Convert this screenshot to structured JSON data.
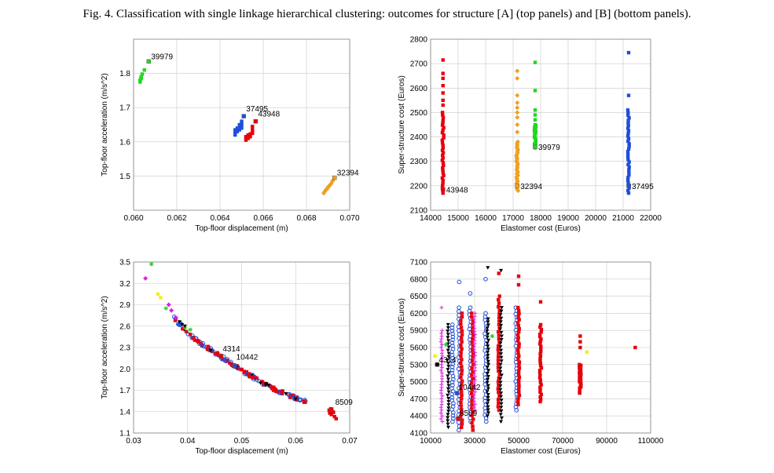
{
  "caption": "Fig. 4. Classification with single linkage hierarchical clustering: outcomes for structure [A] (top panels) and [B] (bottom panels).",
  "colors": {
    "red": "#e8000b",
    "blue": "#1f4fd8",
    "green": "#1ed81e",
    "orange": "#f0a020",
    "black": "#000000",
    "magenta": "#e020e0",
    "yellow": "#f0f020",
    "grid": "#c8c8c8"
  },
  "chart_data": [
    {
      "type": "scatter",
      "xlabel": "Top-floor displacement (m)",
      "ylabel": "Top-floor acceleration (m/s^2)",
      "xlim": [
        0.06,
        0.07
      ],
      "ylim": [
        1.4,
        1.9
      ],
      "xticks": [
        0.06,
        0.062,
        0.064,
        0.066,
        0.068,
        0.07
      ],
      "xtick_labels": [
        "0.060",
        "0.062",
        "0.064",
        "0.066",
        "0.068",
        "0.070"
      ],
      "yticks": [
        1.5,
        1.6,
        1.7,
        1.8
      ],
      "ytick_labels": [
        "1.5",
        "1.6",
        "1.7",
        "1.8"
      ],
      "grid": true,
      "series": [
        {
          "color": "#1ed81e",
          "marker": "square",
          "points": [
            [
              0.0603,
              1.775
            ],
            [
              0.0603,
              1.78
            ],
            [
              0.06035,
              1.785
            ],
            [
              0.06035,
              1.79
            ],
            [
              0.0604,
              1.798
            ],
            [
              0.0605,
              1.81
            ]
          ]
        },
        {
          "color": "#1f4fd8",
          "marker": "square",
          "points": [
            [
              0.0647,
              1.62
            ],
            [
              0.0647,
              1.625
            ],
            [
              0.0647,
              1.63
            ],
            [
              0.0647,
              1.635
            ],
            [
              0.0648,
              1.63
            ],
            [
              0.0648,
              1.64
            ],
            [
              0.0649,
              1.635
            ],
            [
              0.0649,
              1.645
            ],
            [
              0.065,
              1.64
            ],
            [
              0.065,
              1.648
            ],
            [
              0.065,
              1.652
            ],
            [
              0.0649,
              1.65
            ],
            [
              0.065,
              1.66
            ]
          ]
        },
        {
          "color": "#e8000b",
          "marker": "square",
          "points": [
            [
              0.0652,
              1.605
            ],
            [
              0.0652,
              1.61
            ],
            [
              0.0652,
              1.615
            ],
            [
              0.0653,
              1.61
            ],
            [
              0.0653,
              1.62
            ],
            [
              0.0654,
              1.615
            ],
            [
              0.0654,
              1.623
            ],
            [
              0.0655,
              1.625
            ],
            [
              0.0655,
              1.63
            ],
            [
              0.0655,
              1.64
            ],
            [
              0.0655,
              1.645
            ]
          ]
        },
        {
          "color": "#f0a020",
          "marker": "diamond",
          "points": [
            [
              0.0688,
              1.45
            ],
            [
              0.06885,
              1.455
            ],
            [
              0.0689,
              1.46
            ],
            [
              0.06895,
              1.462
            ],
            [
              0.069,
              1.468
            ],
            [
              0.06905,
              1.47
            ],
            [
              0.0691,
              1.475
            ],
            [
              0.06915,
              1.478
            ],
            [
              0.0692,
              1.485
            ],
            [
              0.06925,
              1.49
            ]
          ]
        }
      ],
      "labeled": [
        {
          "label": "39979",
          "x": 0.0607,
          "y": 1.835,
          "color": "#1ed81e",
          "dx": 3,
          "dy": -3
        },
        {
          "label": "37495",
          "x": 0.0651,
          "y": 1.675,
          "color": "#1f4fd8",
          "dx": 3,
          "dy": -6
        },
        {
          "label": "43948",
          "x": 0.06565,
          "y": 1.66,
          "color": "#e8000b",
          "dx": 3,
          "dy": -6
        },
        {
          "label": "32394",
          "x": 0.0693,
          "y": 1.495,
          "color": "#f0a020",
          "dx": 3,
          "dy": -3
        }
      ]
    },
    {
      "type": "scatter",
      "xlabel": "Elastomer cost (Euros)",
      "ylabel": "Super-structure cost (Euros)",
      "xlim": [
        14000,
        22000
      ],
      "ylim": [
        2100,
        2800
      ],
      "xticks": [
        14000,
        15000,
        16000,
        17000,
        18000,
        19000,
        20000,
        21000,
        22000
      ],
      "xtick_labels": [
        "14000",
        "15000",
        "16000",
        "17000",
        "18000",
        "19000",
        "20000",
        "21000",
        "22000"
      ],
      "yticks": [
        2100,
        2200,
        2300,
        2400,
        2500,
        2600,
        2700,
        2800
      ],
      "ytick_labels": [
        "2100",
        "2200",
        "2300",
        "2400",
        "2500",
        "2600",
        "2700",
        "2800"
      ],
      "grid": true,
      "columns": [
        {
          "x": 14450,
          "ymin": 2170,
          "ymax": 2500,
          "extra": [
            2530,
            2550,
            2580,
            2610,
            2640,
            2660,
            2715
          ],
          "color": "#e8000b",
          "marker": "square"
        },
        {
          "x": 17150,
          "ymin": 2180,
          "ymax": 2380,
          "extra": [
            2420,
            2450,
            2480,
            2500,
            2520,
            2540,
            2570,
            2640,
            2670
          ],
          "color": "#f0a020",
          "marker": "diamond"
        },
        {
          "x": 17800,
          "ymin": 2355,
          "ymax": 2450,
          "extra": [
            2470,
            2490,
            2510,
            2590,
            2705
          ],
          "color": "#1ed81e",
          "marker": "square"
        },
        {
          "x": 21200,
          "ymin": 2170,
          "ymax": 2510,
          "extra": [
            2570,
            2745
          ],
          "color": "#1f4fd8",
          "marker": "square"
        }
      ],
      "labeled": [
        {
          "label": "43948",
          "x": 14450,
          "y": 2185,
          "color": "#e8000b",
          "dx": 4,
          "dy": 4
        },
        {
          "label": "32394",
          "x": 17150,
          "y": 2200,
          "color": "#f0a020",
          "dx": 4,
          "dy": 4
        },
        {
          "label": "39979",
          "x": 17800,
          "y": 2360,
          "color": "#1ed81e",
          "dx": 4,
          "dy": 4
        },
        {
          "label": "37495",
          "x": 21200,
          "y": 2200,
          "color": "#1f4fd8",
          "dx": 4,
          "dy": 4
        }
      ]
    },
    {
      "type": "scatter",
      "xlabel": "Top-floor displacement (m)",
      "ylabel": "Top-floor acceleration (m/s^2)",
      "xlim": [
        0.03,
        0.07
      ],
      "ylim": [
        1.1,
        3.5
      ],
      "xticks": [
        0.03,
        0.04,
        0.05,
        0.06,
        0.07
      ],
      "xtick_labels": [
        "0.03",
        "0.04",
        "0.05",
        "0.06",
        "0.07"
      ],
      "yticks": [
        1.1,
        1.4,
        1.7,
        2.0,
        2.3,
        2.6,
        2.9,
        3.2,
        3.5
      ],
      "ytick_labels": [
        "1.1",
        "1.4",
        "1.7",
        "2.0",
        "2.3",
        "2.6",
        "2.9",
        "3.2",
        "3.5"
      ],
      "grid": true,
      "trend": [
        [
          0.0375,
          2.72
        ],
        [
          0.04,
          2.5
        ],
        [
          0.042,
          2.38
        ],
        [
          0.044,
          2.28
        ],
        [
          0.046,
          2.18
        ],
        [
          0.048,
          2.08
        ],
        [
          0.05,
          1.98
        ],
        [
          0.052,
          1.89
        ],
        [
          0.054,
          1.8
        ],
        [
          0.056,
          1.72
        ],
        [
          0.058,
          1.65
        ],
        [
          0.06,
          1.59
        ],
        [
          0.062,
          1.54
        ]
      ],
      "series": [
        {
          "color": "#1ed81e",
          "marker": "star",
          "points": [
            [
              0.0333,
              3.47
            ],
            [
              0.0395,
              2.58
            ],
            [
              0.0405,
              2.55
            ],
            [
              0.036,
              2.85
            ]
          ]
        },
        {
          "color": "#e020e0",
          "marker": "diamond",
          "points": [
            [
              0.0322,
              3.27
            ],
            [
              0.0365,
              2.9
            ],
            [
              0.037,
              2.82
            ],
            [
              0.0378,
              2.72
            ]
          ]
        },
        {
          "color": "#f0f020",
          "marker": "square",
          "points": [
            [
              0.0345,
              3.05
            ],
            [
              0.035,
              3.0
            ]
          ]
        },
        {
          "color": "#000000",
          "marker": "tri",
          "points": [
            [
              0.0385,
              2.66
            ],
            [
              0.039,
              2.62
            ],
            [
              0.0395,
              2.6
            ],
            [
              0.049,
              2.02
            ],
            [
              0.0535,
              1.8
            ],
            [
              0.0545,
              1.78
            ],
            [
              0.055,
              1.77
            ]
          ]
        },
        {
          "color": "#e8000b",
          "marker": "square",
          "points": [
            [
              0.0665,
              1.44
            ],
            [
              0.0662,
              1.42
            ],
            [
              0.0668,
              1.4
            ],
            [
              0.067,
              1.39
            ],
            [
              0.0663,
              1.38
            ],
            [
              0.0666,
              1.36
            ],
            [
              0.0672,
              1.33
            ],
            [
              0.0675,
              1.3
            ]
          ]
        }
      ],
      "labeled": [
        {
          "label": "4314",
          "x": 0.0462,
          "y": 2.18,
          "color": "#e8000b",
          "dx": 2,
          "dy": -6
        },
        {
          "label": "10442",
          "x": 0.0487,
          "y": 2.04,
          "color": "#1f4fd8",
          "dx": 2,
          "dy": -8
        },
        {
          "label": "8509",
          "x": 0.0666,
          "y": 1.43,
          "color": "#e8000b",
          "dx": 5,
          "dy": -6
        }
      ]
    },
    {
      "type": "scatter",
      "xlabel": "Elastomer cost (Euros)",
      "ylabel": "Super-structure cost (Euros)",
      "xlim": [
        10000,
        110000
      ],
      "ylim": [
        4100,
        7100
      ],
      "xticks": [
        10000,
        30000,
        50000,
        70000,
        90000,
        110000
      ],
      "xtick_labels": [
        "10000",
        "30000",
        "50000",
        "70000",
        "90000",
        "110000"
      ],
      "yticks": [
        4100,
        4400,
        4700,
        5000,
        5300,
        5600,
        5900,
        6200,
        6500,
        6800,
        7100
      ],
      "ytick_labels": [
        "4100",
        "4400",
        "4700",
        "5000",
        "5300",
        "5600",
        "5900",
        "6200",
        "6500",
        "6800",
        "7100"
      ],
      "grid": true,
      "columns": [
        {
          "x": 15000,
          "ymin": 4300,
          "ymax": 5900,
          "extra": [
            6300
          ],
          "color": "#e020e0",
          "marker": "plus"
        },
        {
          "x": 18000,
          "ymin": 4200,
          "ymax": 6000,
          "extra": [],
          "color": "#000000",
          "marker": "tri"
        },
        {
          "x": 20000,
          "ymin": 4300,
          "ymax": 6000,
          "extra": [],
          "color": "#1f4fd8",
          "marker": "circle"
        },
        {
          "x": 23000,
          "ymin": 4150,
          "ymax": 6300,
          "extra": [
            6750
          ],
          "color": "#1f4fd8",
          "marker": "circle"
        },
        {
          "x": 24000,
          "ymin": 4200,
          "ymax": 6200,
          "extra": [],
          "color": "#e8000b",
          "marker": "square"
        },
        {
          "x": 28000,
          "ymin": 4300,
          "ymax": 6300,
          "extra": [
            6550
          ],
          "color": "#1f4fd8",
          "marker": "circle"
        },
        {
          "x": 29000,
          "ymin": 4150,
          "ymax": 6200,
          "extra": [],
          "color": "#e8000b",
          "marker": "square"
        },
        {
          "x": 30000,
          "ymin": 4500,
          "ymax": 6200,
          "extra": [],
          "color": "#e020e0",
          "marker": "plus"
        },
        {
          "x": 35000,
          "ymin": 4300,
          "ymax": 6200,
          "extra": [
            6800
          ],
          "color": "#1f4fd8",
          "marker": "circle"
        },
        {
          "x": 36000,
          "ymin": 4400,
          "ymax": 6100,
          "extra": [
            7000
          ],
          "color": "#000000",
          "marker": "tri"
        },
        {
          "x": 41000,
          "ymin": 4500,
          "ymax": 6500,
          "extra": [
            6900
          ],
          "color": "#e8000b",
          "marker": "square"
        },
        {
          "x": 42000,
          "ymin": 4300,
          "ymax": 6300,
          "extra": [
            6950
          ],
          "color": "#000000",
          "marker": "tri"
        },
        {
          "x": 49000,
          "ymin": 4500,
          "ymax": 6300,
          "extra": [],
          "color": "#1f4fd8",
          "marker": "circle"
        },
        {
          "x": 50000,
          "ymin": 4600,
          "ymax": 6300,
          "extra": [
            6700,
            6850
          ],
          "color": "#e8000b",
          "marker": "square"
        },
        {
          "x": 60000,
          "ymin": 4650,
          "ymax": 6000,
          "extra": [
            6400
          ],
          "color": "#e8000b",
          "marker": "square"
        },
        {
          "x": 78000,
          "ymin": 4800,
          "ymax": 5300,
          "extra": [
            5600,
            5700,
            5800
          ],
          "color": "#e8000b",
          "marker": "square"
        }
      ],
      "series": [
        {
          "color": "#f0f020",
          "marker": "square",
          "points": [
            [
              12000,
              5450
            ],
            [
              81000,
              5520
            ]
          ]
        },
        {
          "color": "#e8000b",
          "marker": "square",
          "points": [
            [
              103000,
              5600
            ]
          ]
        },
        {
          "color": "#1ed81e",
          "marker": "star",
          "points": [
            [
              38000,
              5800
            ],
            [
              17000,
              5650
            ]
          ]
        }
      ],
      "labeled": [
        {
          "label": "4314",
          "x": 13000,
          "y": 5300,
          "color": "#000000",
          "dx": 2,
          "dy": -3
        },
        {
          "label": "10442",
          "x": 22000,
          "y": 4800,
          "color": "#1f4fd8",
          "dx": 2,
          "dy": -4
        },
        {
          "label": "8509",
          "x": 22500,
          "y": 4350,
          "color": "#e8000b",
          "dx": 2,
          "dy": -4
        }
      ]
    }
  ]
}
